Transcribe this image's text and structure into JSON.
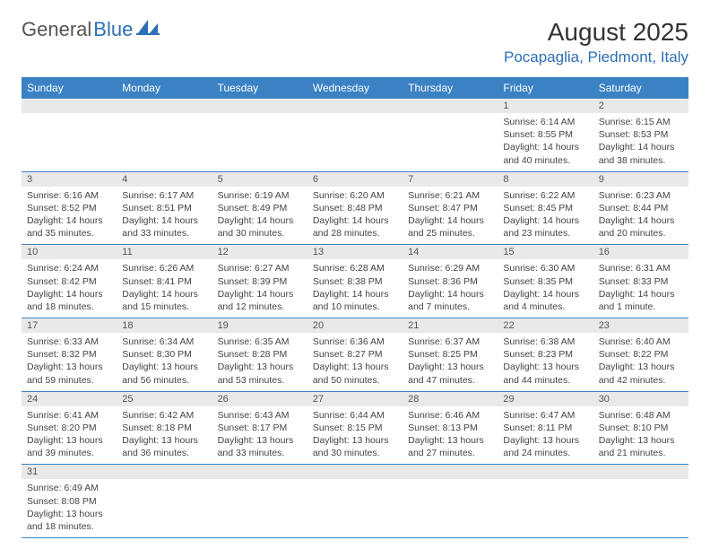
{
  "logo": {
    "text1": "General",
    "text2": "Blue"
  },
  "title": "August 2025",
  "location": "Pocapaglia, Piedmont, Italy",
  "colors": {
    "header_bg": "#3a82c4",
    "accent": "#2d6fb5",
    "daynum_bg": "#e9e9e9"
  },
  "weekdays": [
    "Sunday",
    "Monday",
    "Tuesday",
    "Wednesday",
    "Thursday",
    "Friday",
    "Saturday"
  ],
  "weeks": [
    [
      null,
      null,
      null,
      null,
      null,
      {
        "n": "1",
        "sr": "6:14 AM",
        "ss": "8:55 PM",
        "dl": "14 hours and 40 minutes."
      },
      {
        "n": "2",
        "sr": "6:15 AM",
        "ss": "8:53 PM",
        "dl": "14 hours and 38 minutes."
      }
    ],
    [
      {
        "n": "3",
        "sr": "6:16 AM",
        "ss": "8:52 PM",
        "dl": "14 hours and 35 minutes."
      },
      {
        "n": "4",
        "sr": "6:17 AM",
        "ss": "8:51 PM",
        "dl": "14 hours and 33 minutes."
      },
      {
        "n": "5",
        "sr": "6:19 AM",
        "ss": "8:49 PM",
        "dl": "14 hours and 30 minutes."
      },
      {
        "n": "6",
        "sr": "6:20 AM",
        "ss": "8:48 PM",
        "dl": "14 hours and 28 minutes."
      },
      {
        "n": "7",
        "sr": "6:21 AM",
        "ss": "8:47 PM",
        "dl": "14 hours and 25 minutes."
      },
      {
        "n": "8",
        "sr": "6:22 AM",
        "ss": "8:45 PM",
        "dl": "14 hours and 23 minutes."
      },
      {
        "n": "9",
        "sr": "6:23 AM",
        "ss": "8:44 PM",
        "dl": "14 hours and 20 minutes."
      }
    ],
    [
      {
        "n": "10",
        "sr": "6:24 AM",
        "ss": "8:42 PM",
        "dl": "14 hours and 18 minutes."
      },
      {
        "n": "11",
        "sr": "6:26 AM",
        "ss": "8:41 PM",
        "dl": "14 hours and 15 minutes."
      },
      {
        "n": "12",
        "sr": "6:27 AM",
        "ss": "8:39 PM",
        "dl": "14 hours and 12 minutes."
      },
      {
        "n": "13",
        "sr": "6:28 AM",
        "ss": "8:38 PM",
        "dl": "14 hours and 10 minutes."
      },
      {
        "n": "14",
        "sr": "6:29 AM",
        "ss": "8:36 PM",
        "dl": "14 hours and 7 minutes."
      },
      {
        "n": "15",
        "sr": "6:30 AM",
        "ss": "8:35 PM",
        "dl": "14 hours and 4 minutes."
      },
      {
        "n": "16",
        "sr": "6:31 AM",
        "ss": "8:33 PM",
        "dl": "14 hours and 1 minute."
      }
    ],
    [
      {
        "n": "17",
        "sr": "6:33 AM",
        "ss": "8:32 PM",
        "dl": "13 hours and 59 minutes."
      },
      {
        "n": "18",
        "sr": "6:34 AM",
        "ss": "8:30 PM",
        "dl": "13 hours and 56 minutes."
      },
      {
        "n": "19",
        "sr": "6:35 AM",
        "ss": "8:28 PM",
        "dl": "13 hours and 53 minutes."
      },
      {
        "n": "20",
        "sr": "6:36 AM",
        "ss": "8:27 PM",
        "dl": "13 hours and 50 minutes."
      },
      {
        "n": "21",
        "sr": "6:37 AM",
        "ss": "8:25 PM",
        "dl": "13 hours and 47 minutes."
      },
      {
        "n": "22",
        "sr": "6:38 AM",
        "ss": "8:23 PM",
        "dl": "13 hours and 44 minutes."
      },
      {
        "n": "23",
        "sr": "6:40 AM",
        "ss": "8:22 PM",
        "dl": "13 hours and 42 minutes."
      }
    ],
    [
      {
        "n": "24",
        "sr": "6:41 AM",
        "ss": "8:20 PM",
        "dl": "13 hours and 39 minutes."
      },
      {
        "n": "25",
        "sr": "6:42 AM",
        "ss": "8:18 PM",
        "dl": "13 hours and 36 minutes."
      },
      {
        "n": "26",
        "sr": "6:43 AM",
        "ss": "8:17 PM",
        "dl": "13 hours and 33 minutes."
      },
      {
        "n": "27",
        "sr": "6:44 AM",
        "ss": "8:15 PM",
        "dl": "13 hours and 30 minutes."
      },
      {
        "n": "28",
        "sr": "6:46 AM",
        "ss": "8:13 PM",
        "dl": "13 hours and 27 minutes."
      },
      {
        "n": "29",
        "sr": "6:47 AM",
        "ss": "8:11 PM",
        "dl": "13 hours and 24 minutes."
      },
      {
        "n": "30",
        "sr": "6:48 AM",
        "ss": "8:10 PM",
        "dl": "13 hours and 21 minutes."
      }
    ],
    [
      {
        "n": "31",
        "sr": "6:49 AM",
        "ss": "8:08 PM",
        "dl": "13 hours and 18 minutes."
      },
      null,
      null,
      null,
      null,
      null,
      null
    ]
  ]
}
